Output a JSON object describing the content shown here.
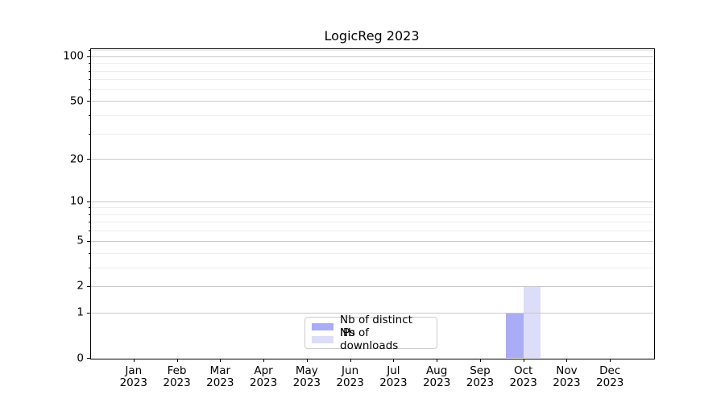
{
  "chart_data": {
    "type": "bar",
    "title": "LogicReg 2023",
    "categories": [
      "Jan",
      "Feb",
      "Mar",
      "Apr",
      "May",
      "Jun",
      "Jul",
      "Aug",
      "Sep",
      "Oct",
      "Nov",
      "Dec"
    ],
    "category_year": "2023",
    "series": [
      {
        "name": "Nb of distinct IPs",
        "color": "#abacf6",
        "values": [
          0,
          0,
          0,
          0,
          0,
          0,
          0,
          0,
          0,
          1,
          0,
          0
        ]
      },
      {
        "name": "Nb of downloads",
        "color": "#dcddf9",
        "values": [
          0,
          0,
          0,
          0,
          0,
          0,
          0,
          0,
          0,
          2,
          0,
          0
        ]
      }
    ],
    "xlabel": "",
    "ylabel": "",
    "yscale": "log1p",
    "yticks": [
      0,
      1,
      2,
      5,
      10,
      20,
      50,
      100
    ],
    "minor_yticks": [
      3,
      4,
      6,
      7,
      8,
      9,
      30,
      40,
      60,
      70,
      80,
      90,
      110
    ],
    "ylim": [
      0,
      113
    ],
    "grid": "horizontal major and minor, drawn over bars",
    "legend_position": "lower center",
    "bar_width_fraction": 0.4
  }
}
